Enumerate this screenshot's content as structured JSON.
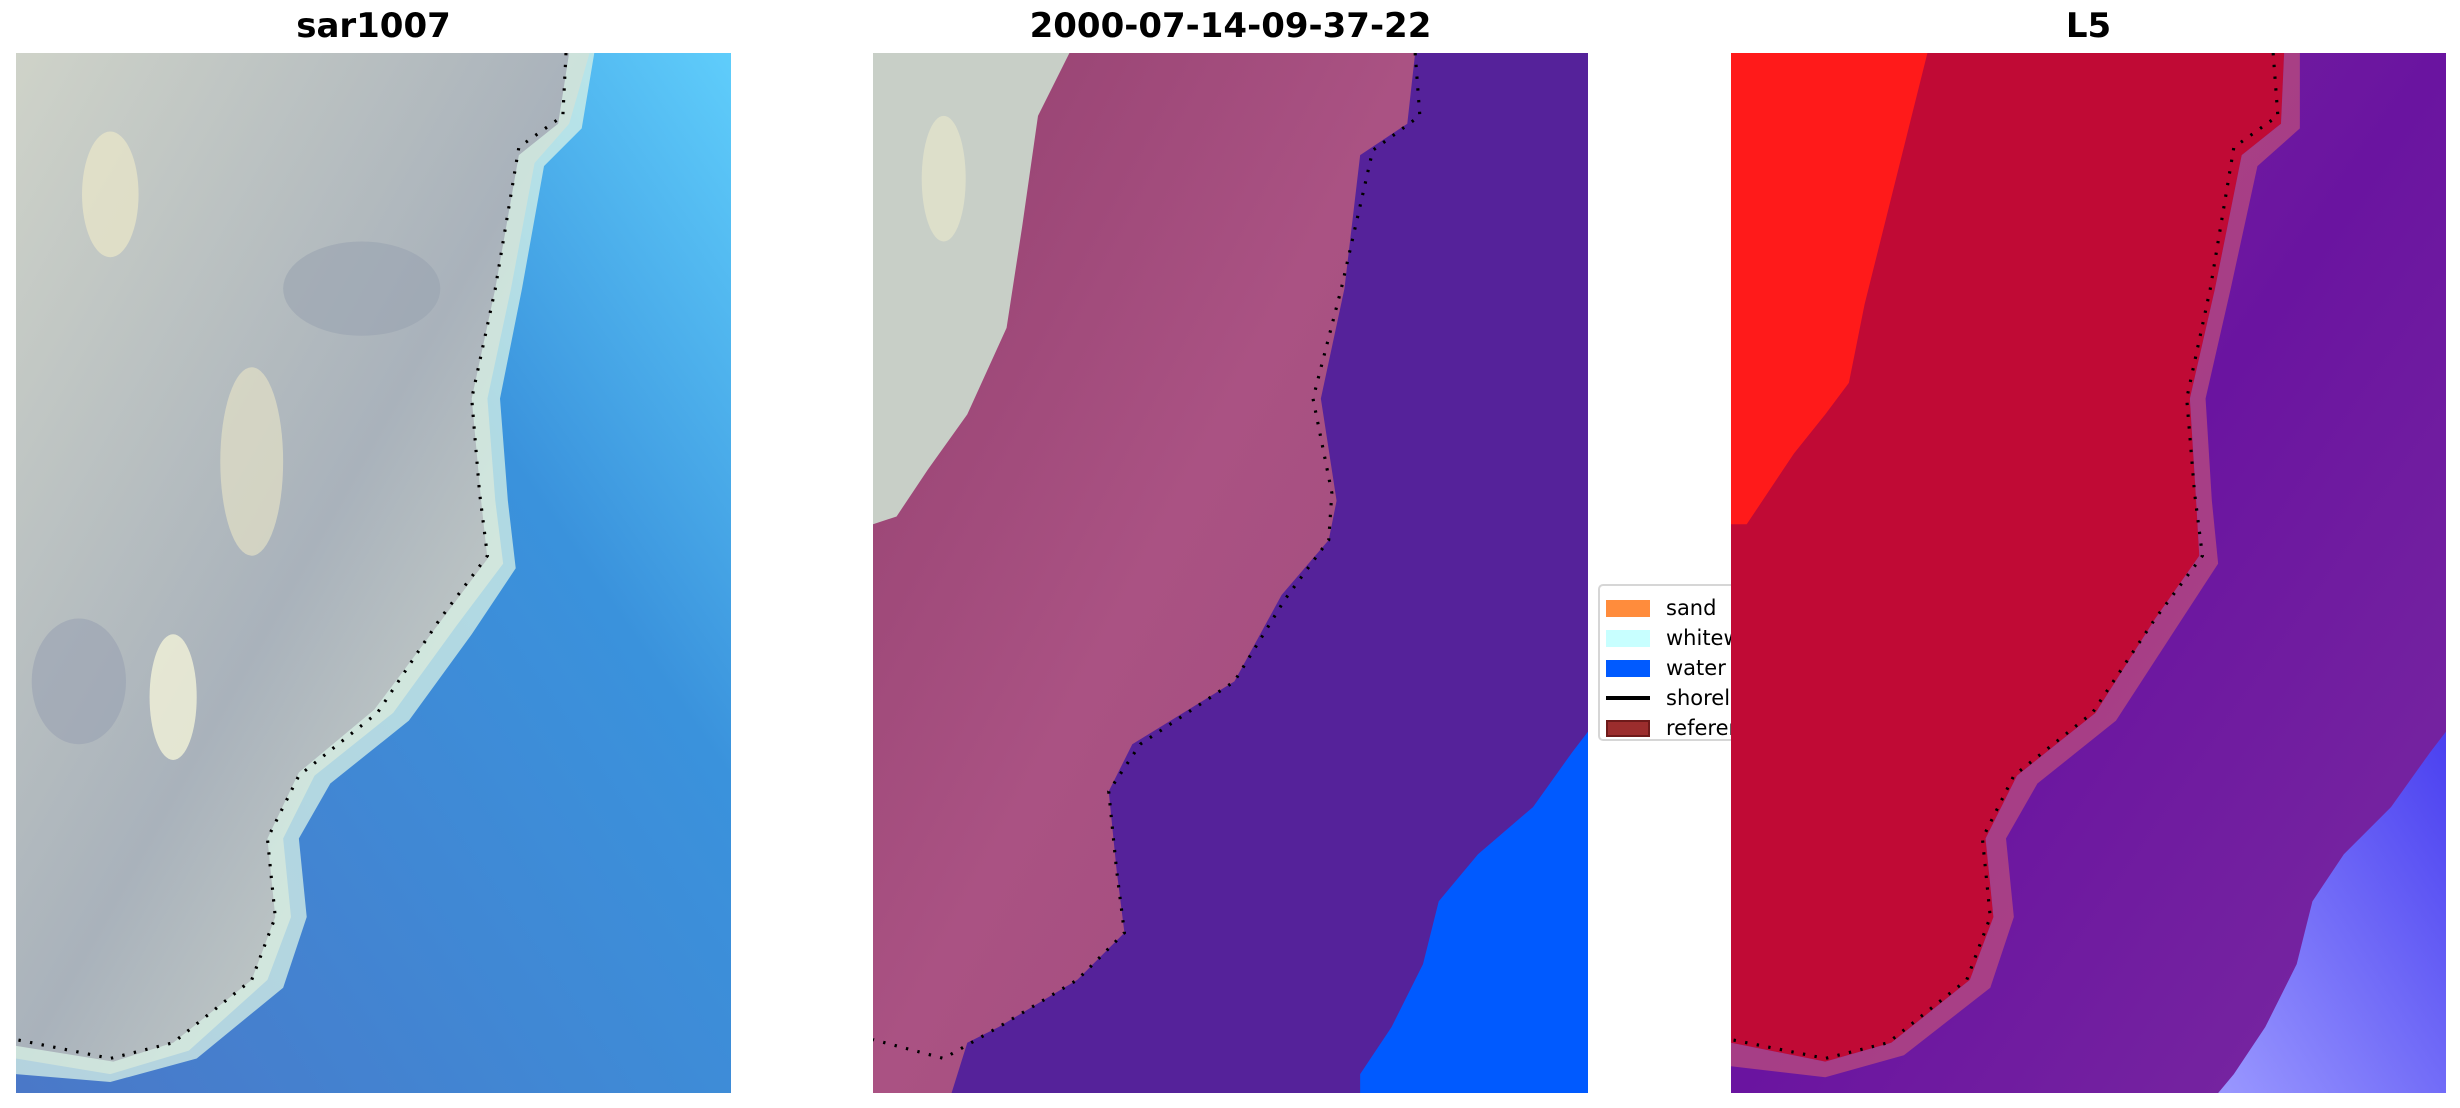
{
  "panels": [
    {
      "title": "sar1007"
    },
    {
      "title": "2000-07-14-09-37-22"
    },
    {
      "title": "L5"
    }
  ],
  "legend": {
    "items": [
      {
        "label": "sand",
        "color": "#ff8c3c",
        "kind": "patch"
      },
      {
        "label": "whitewater",
        "color": "#c8ffff",
        "kind": "patch"
      },
      {
        "label": "water",
        "color": "#005aff",
        "kind": "patch"
      },
      {
        "label": "shoreline",
        "color": "#000000",
        "kind": "line"
      },
      {
        "label": "reference",
        "color": "#9b2d2d",
        "kind": "patch"
      }
    ]
  },
  "colors": {
    "pink_land": "#a04a7c",
    "purple_water": "#55229a",
    "blue_water": "#005aff",
    "red": "#ff1a1a",
    "crimson": "#c00a35"
  }
}
